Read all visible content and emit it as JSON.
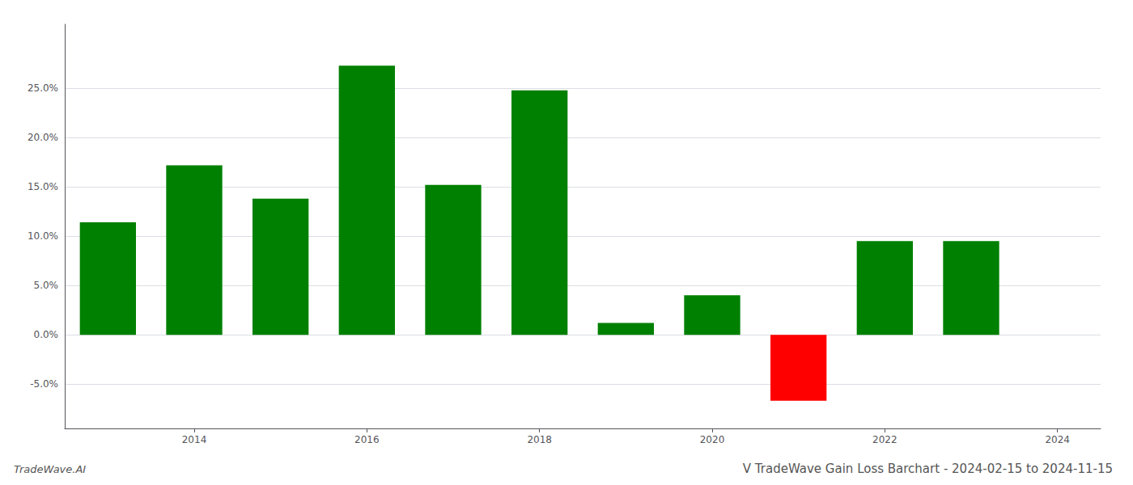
{
  "chart_data": {
    "type": "bar",
    "title": "V TradeWave Gain Loss Barchart - 2024-02-15 to 2024-11-15",
    "annotations": [
      "TradeWave.AI"
    ],
    "x": [
      2013,
      2014,
      2015,
      2016,
      2017,
      2018,
      2019,
      2020,
      2021,
      2022,
      2023
    ],
    "values": [
      0.114,
      0.172,
      0.138,
      0.273,
      0.152,
      0.248,
      0.012,
      0.04,
      -0.067,
      0.095,
      0.095
    ],
    "colors": [
      "#008000",
      "#008000",
      "#008000",
      "#008000",
      "#008000",
      "#008000",
      "#008000",
      "#008000",
      "#ff0000",
      "#008000",
      "#008000"
    ],
    "xlim": [
      2012.5,
      2024.5
    ],
    "xticks": [
      2014,
      2016,
      2018,
      2020,
      2022,
      2024
    ],
    "ylim": [
      -0.095,
      0.315
    ],
    "yticks": [
      {
        "value": -0.05,
        "label": "-5.0%"
      },
      {
        "value": 0.0,
        "label": "0.0%"
      },
      {
        "value": 0.05,
        "label": "5.0%"
      },
      {
        "value": 0.1,
        "label": "10.0%"
      },
      {
        "value": 0.15,
        "label": "15.0%"
      },
      {
        "value": 0.2,
        "label": "20.0%"
      },
      {
        "value": 0.25,
        "label": "25.0%"
      }
    ],
    "grid": true
  }
}
